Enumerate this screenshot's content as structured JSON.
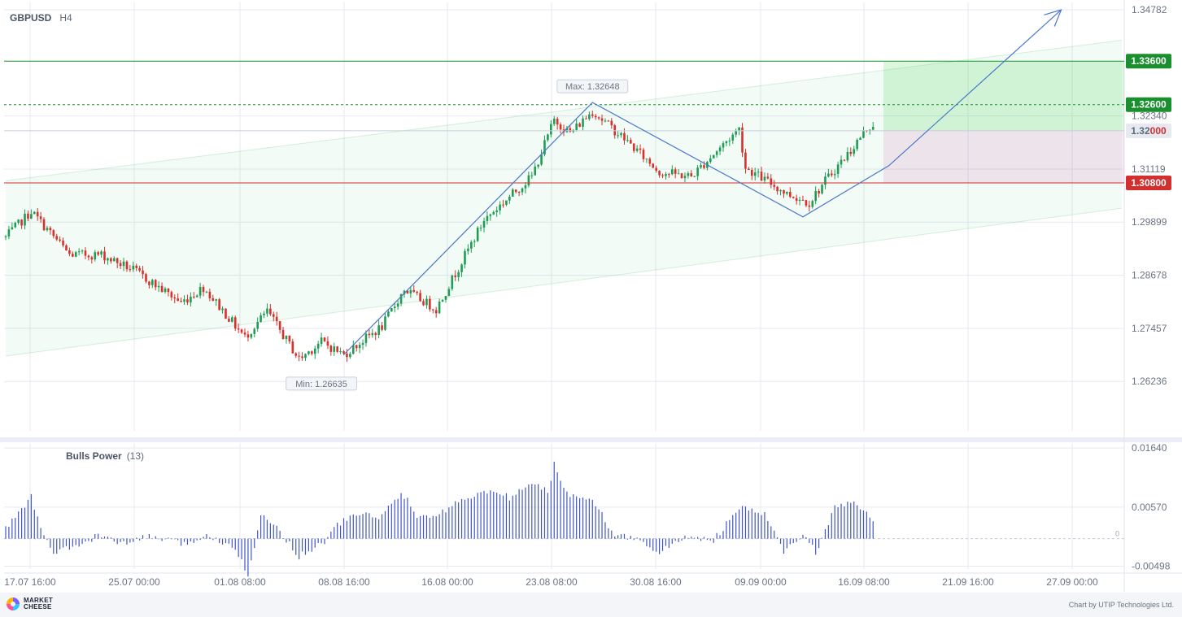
{
  "header": {
    "symbol": "GBPUSD",
    "timeframe": "H4"
  },
  "indicator": {
    "name": "Bulls Power",
    "period": "(13)",
    "zero_label": "0"
  },
  "footer": {
    "brand_line1": "MARKET",
    "brand_line2": "CHEESE",
    "credit": "Chart by UTIP Technologies Ltd."
  },
  "colors": {
    "bull": "#1f9d55",
    "bear": "#d9302c",
    "tp": "#1a8f2e",
    "sl": "#d32f2f",
    "pattern": "#4a78c9",
    "grid": "#e6e9f2",
    "power": "#3f55c7"
  },
  "chart_data": [
    {
      "type": "candlestick",
      "price_axis": {
        "min": 1.251,
        "max": 1.3495,
        "ticks": [
          "1.34782",
          "1.32340",
          "1.31119",
          "1.29899",
          "1.28678",
          "1.27457",
          "1.26236"
        ]
      },
      "time_axis": [
        "17.07 16:00",
        "25.07 00:00",
        "01.08 08:00",
        "08.08 16:00",
        "16.08 00:00",
        "23.08 08:00",
        "30.08 16:00",
        "09.09 00:00",
        "16.09 08:00",
        "21.09 16:00",
        "27.09 00:00"
      ],
      "levels": [
        {
          "id": "take-profit",
          "price": 1.336,
          "label": "1.33600",
          "style": "solid"
        },
        {
          "id": "entry-dashed",
          "price": 1.326,
          "label": "1.32600",
          "style": "dashed"
        },
        {
          "id": "stop-loss",
          "price": 1.308,
          "label": "1.30800",
          "style": "solid"
        }
      ],
      "current_price": {
        "price": 1.32,
        "label_main": "1.32",
        "label_tail": "000"
      },
      "annotations": [
        {
          "text": "Max: 1.32648",
          "price": 1.32648
        },
        {
          "text": "Min: 1.26635",
          "price": 1.26635
        }
      ],
      "pattern_points": [
        {
          "bar": 106,
          "price": 1.2685
        },
        {
          "bar": 184,
          "price": 1.3265
        },
        {
          "bar": 250,
          "price": 1.3002
        },
        {
          "bar": 277,
          "price": 1.312
        },
        {
          "bar": 331,
          "price": 1.3478
        }
      ],
      "channel": {
        "lower": [
          [
            0,
            1.2682
          ],
          [
            350,
            1.3022
          ]
        ],
        "upper": [
          [
            0,
            1.3085
          ],
          [
            350,
            1.3408
          ]
        ]
      },
      "anchors": [
        [
          0,
          1.2955
        ],
        [
          8,
          1.3015
        ],
        [
          20,
          1.2915
        ],
        [
          30,
          1.2915
        ],
        [
          40,
          1.288
        ],
        [
          55,
          1.2805
        ],
        [
          62,
          1.284
        ],
        [
          75,
          1.2725
        ],
        [
          82,
          1.2785
        ],
        [
          92,
          1.2675
        ],
        [
          99,
          1.2715
        ],
        [
          106,
          1.2685
        ],
        [
          118,
          1.275
        ],
        [
          125,
          1.2835
        ],
        [
          135,
          1.279
        ],
        [
          150,
          1.2995
        ],
        [
          165,
          1.3095
        ],
        [
          172,
          1.3225
        ],
        [
          177,
          1.3195
        ],
        [
          184,
          1.3245
        ],
        [
          195,
          1.3175
        ],
        [
          205,
          1.3105
        ],
        [
          215,
          1.3095
        ],
        [
          230,
          1.3205
        ],
        [
          232,
          1.3115
        ],
        [
          245,
          1.3055
        ],
        [
          252,
          1.3035
        ],
        [
          257,
          1.3085
        ],
        [
          265,
          1.3155
        ],
        [
          270,
          1.3205
        ],
        [
          272,
          1.3215
        ]
      ],
      "candles": 273
    },
    {
      "type": "bar",
      "name": "Bulls Power",
      "value_axis": {
        "min": -0.0055,
        "max": 0.0173,
        "ticks": [
          "0.01640",
          "0.00570",
          "-0.00498"
        ]
      },
      "anchors": [
        [
          0,
          0.0018
        ],
        [
          8,
          0.0075
        ],
        [
          12,
          0.0002
        ],
        [
          15,
          -0.0025
        ],
        [
          22,
          -0.0015
        ],
        [
          30,
          0.0008
        ],
        [
          36,
          -0.0012
        ],
        [
          45,
          0.0005
        ],
        [
          55,
          -0.001
        ],
        [
          64,
          0.0005
        ],
        [
          72,
          -0.0015
        ],
        [
          76,
          -0.0065
        ],
        [
          80,
          0.004
        ],
        [
          85,
          0.0022
        ],
        [
          92,
          -0.0032
        ],
        [
          100,
          -0.0005
        ],
        [
          104,
          0.0025
        ],
        [
          110,
          0.0045
        ],
        [
          118,
          0.004
        ],
        [
          124,
          0.0085
        ],
        [
          130,
          0.0035
        ],
        [
          136,
          0.0045
        ],
        [
          144,
          0.0075
        ],
        [
          152,
          0.0085
        ],
        [
          158,
          0.0075
        ],
        [
          165,
          0.01
        ],
        [
          170,
          0.0085
        ],
        [
          172,
          0.0135
        ],
        [
          176,
          0.008
        ],
        [
          184,
          0.0075
        ],
        [
          190,
          0.001
        ],
        [
          200,
          -0.0005
        ],
        [
          205,
          -0.0025
        ],
        [
          214,
          0.0005
        ],
        [
          222,
          -0.0003
        ],
        [
          230,
          0.0055
        ],
        [
          238,
          0.0045
        ],
        [
          244,
          -0.0025
        ],
        [
          250,
          0.0008
        ],
        [
          254,
          -0.0025
        ],
        [
          260,
          0.0055
        ],
        [
          266,
          0.0065
        ],
        [
          270,
          0.0045
        ],
        [
          272,
          0.003
        ]
      ]
    }
  ]
}
